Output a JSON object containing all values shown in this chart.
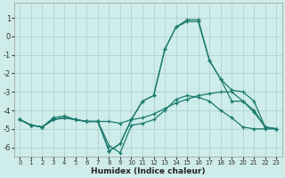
{
  "xlabel": "Humidex (Indice chaleur)",
  "background_color": "#ceecea",
  "grid_color": "#aed4d0",
  "line_color": "#1a7a6e",
  "xlim": [
    -0.5,
    23.5
  ],
  "ylim": [
    -6.5,
    1.8
  ],
  "xticks": [
    0,
    1,
    2,
    3,
    4,
    5,
    6,
    7,
    8,
    9,
    10,
    11,
    12,
    13,
    14,
    15,
    16,
    17,
    18,
    19,
    20,
    21,
    22,
    23
  ],
  "yticks": [
    -6,
    -5,
    -4,
    -3,
    -2,
    -1,
    0,
    1
  ],
  "series": [
    {
      "x": [
        0,
        1,
        2,
        3,
        4,
        5,
        6,
        7,
        8,
        9,
        10,
        11,
        12,
        13,
        14,
        15,
        16,
        17,
        18,
        19,
        20,
        21,
        22,
        23
      ],
      "y": [
        -4.5,
        -4.8,
        -4.9,
        -4.5,
        -4.4,
        -4.5,
        -4.6,
        -4.6,
        -4.6,
        -4.7,
        -4.5,
        -4.4,
        -4.2,
        -3.9,
        -3.6,
        -3.4,
        -3.2,
        -3.1,
        -3.0,
        -3.0,
        -3.5,
        -4.1,
        -4.9,
        -5.0
      ]
    },
    {
      "x": [
        0,
        1,
        2,
        3,
        4,
        5,
        6,
        7,
        8,
        9,
        10,
        11,
        12,
        13,
        14,
        15,
        16,
        17,
        18,
        19,
        20,
        21,
        22,
        23
      ],
      "y": [
        -4.5,
        -4.8,
        -4.9,
        -4.5,
        -4.4,
        -4.5,
        -4.6,
        -4.6,
        -6.2,
        -5.8,
        -4.5,
        -3.5,
        -3.2,
        -0.7,
        0.5,
        0.8,
        0.8,
        -1.3,
        -2.3,
        -3.5,
        -3.5,
        -4.0,
        -4.9,
        -5.0
      ]
    },
    {
      "x": [
        0,
        1,
        2,
        3,
        4,
        5,
        6,
        7,
        8,
        9,
        10,
        11,
        12,
        13,
        14,
        15,
        16,
        17,
        18,
        19,
        20,
        21,
        22,
        23
      ],
      "y": [
        -4.5,
        -4.8,
        -4.9,
        -4.5,
        -4.4,
        -4.5,
        -4.6,
        -4.6,
        -6.2,
        -5.8,
        -4.5,
        -3.5,
        -3.2,
        -0.7,
        0.5,
        0.9,
        0.9,
        -1.3,
        -2.3,
        -2.9,
        -3.0,
        -3.5,
        -4.9,
        -5.0
      ]
    },
    {
      "x": [
        0,
        1,
        2,
        3,
        4,
        5,
        6,
        7,
        8,
        9,
        10,
        11,
        12,
        13,
        14,
        15,
        16,
        17,
        18,
        19,
        20,
        21,
        22,
        23
      ],
      "y": [
        -4.5,
        -4.8,
        -4.9,
        -4.4,
        -4.3,
        -4.5,
        -4.6,
        -4.6,
        -5.9,
        -6.3,
        -4.8,
        -4.7,
        -4.5,
        -4.0,
        -3.4,
        -3.2,
        -3.3,
        -3.5,
        -4.0,
        -4.4,
        -4.9,
        -5.0,
        -5.0,
        -5.0
      ]
    }
  ]
}
